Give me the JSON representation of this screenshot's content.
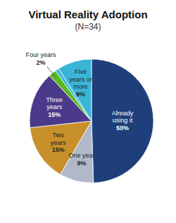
{
  "chart_data": {
    "type": "pie",
    "title": "Virtual Reality Adoption",
    "subtitle": "(N=34)",
    "categories": [
      "Already\nusing it",
      "One year",
      "Two\nyears",
      "Three\nyears",
      "Four years",
      null,
      "Five\nyears or\nmore"
    ],
    "values": [
      50,
      9,
      15,
      15,
      2,
      1,
      9
    ],
    "value_labels": [
      "50%",
      "9%",
      "15%",
      "15%",
      "2%",
      null,
      "9%"
    ],
    "colors": [
      "#1e3f7a",
      "#b0b9c9",
      "#c8902a",
      "#4b3a8a",
      "#5ab820",
      "#3ab5d8",
      "#3ab5d8"
    ],
    "data_labels": true
  }
}
